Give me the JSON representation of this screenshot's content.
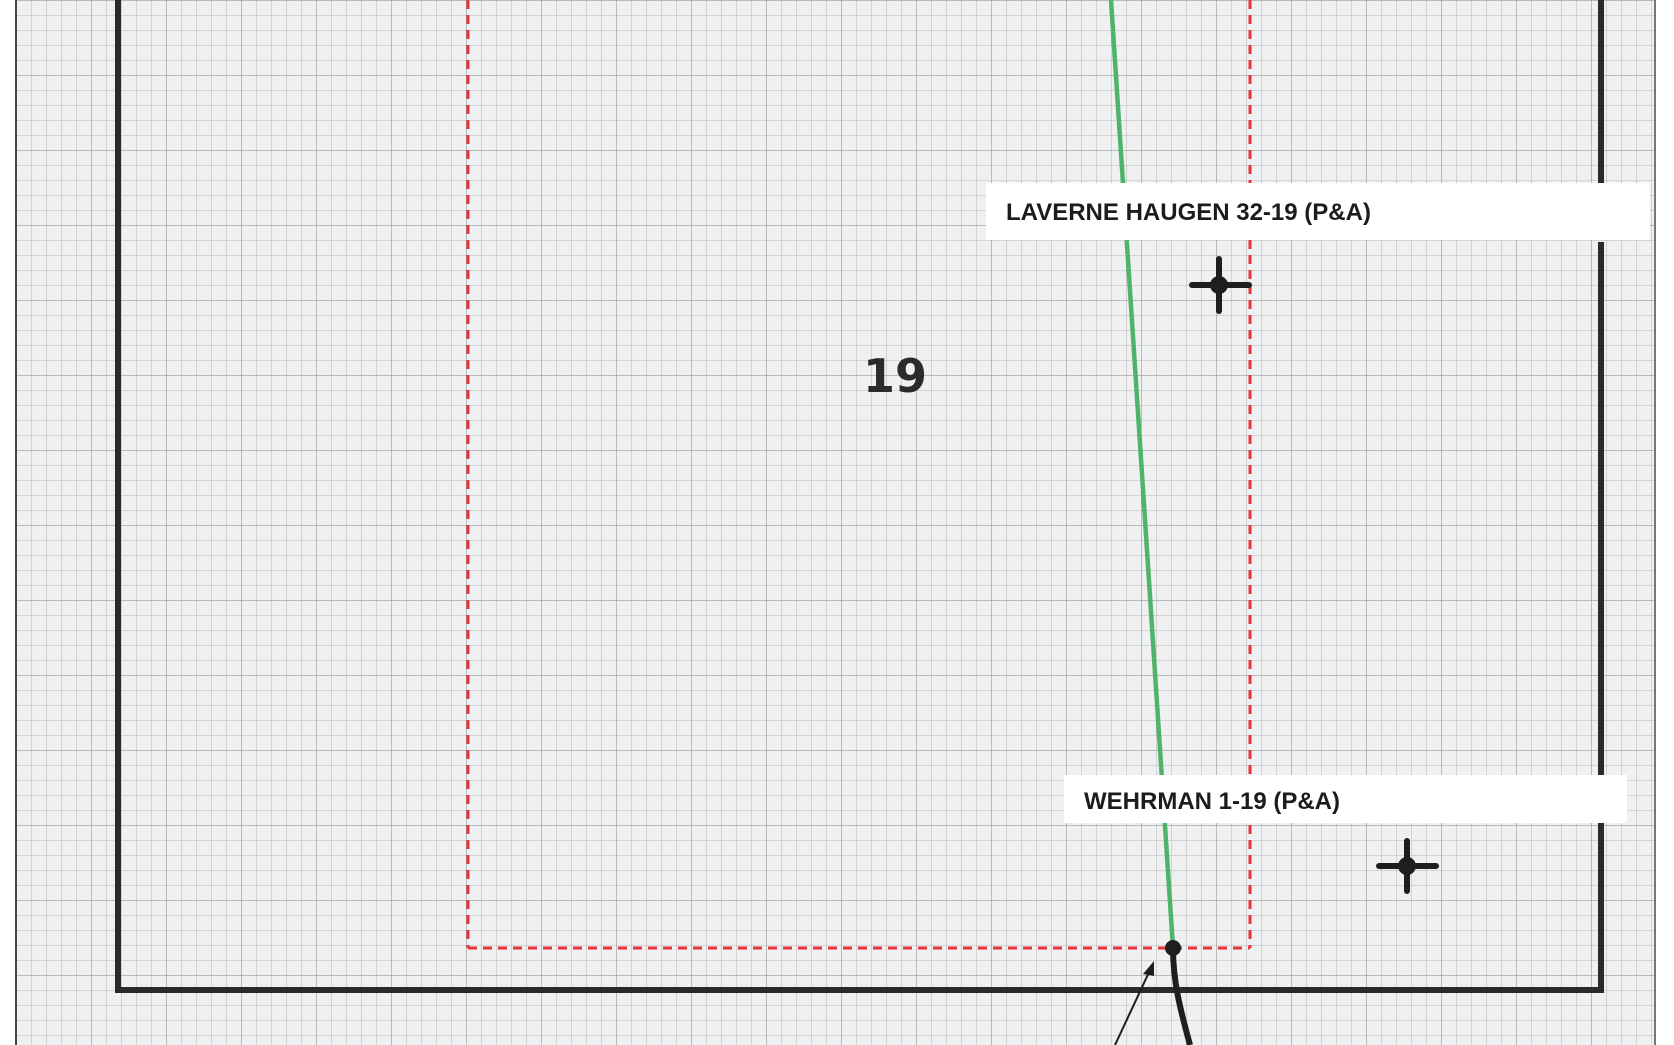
{
  "map": {
    "section_number": "19",
    "wells": [
      {
        "label": "LAVERNE HAUGEN 32-19 (P&A)",
        "symbol": "plugged-abandoned-well-icon"
      },
      {
        "label": "WEHRMAN 1-19 (P&A)",
        "symbol": "plugged-abandoned-well-icon"
      }
    ],
    "colors": {
      "grid": "#9a9a9a",
      "section_boundary": "#2a2a2a",
      "setback_line": "#e8333a",
      "wellbore_path": "#4fb36a",
      "well_symbol": "#1e1e1e"
    }
  }
}
